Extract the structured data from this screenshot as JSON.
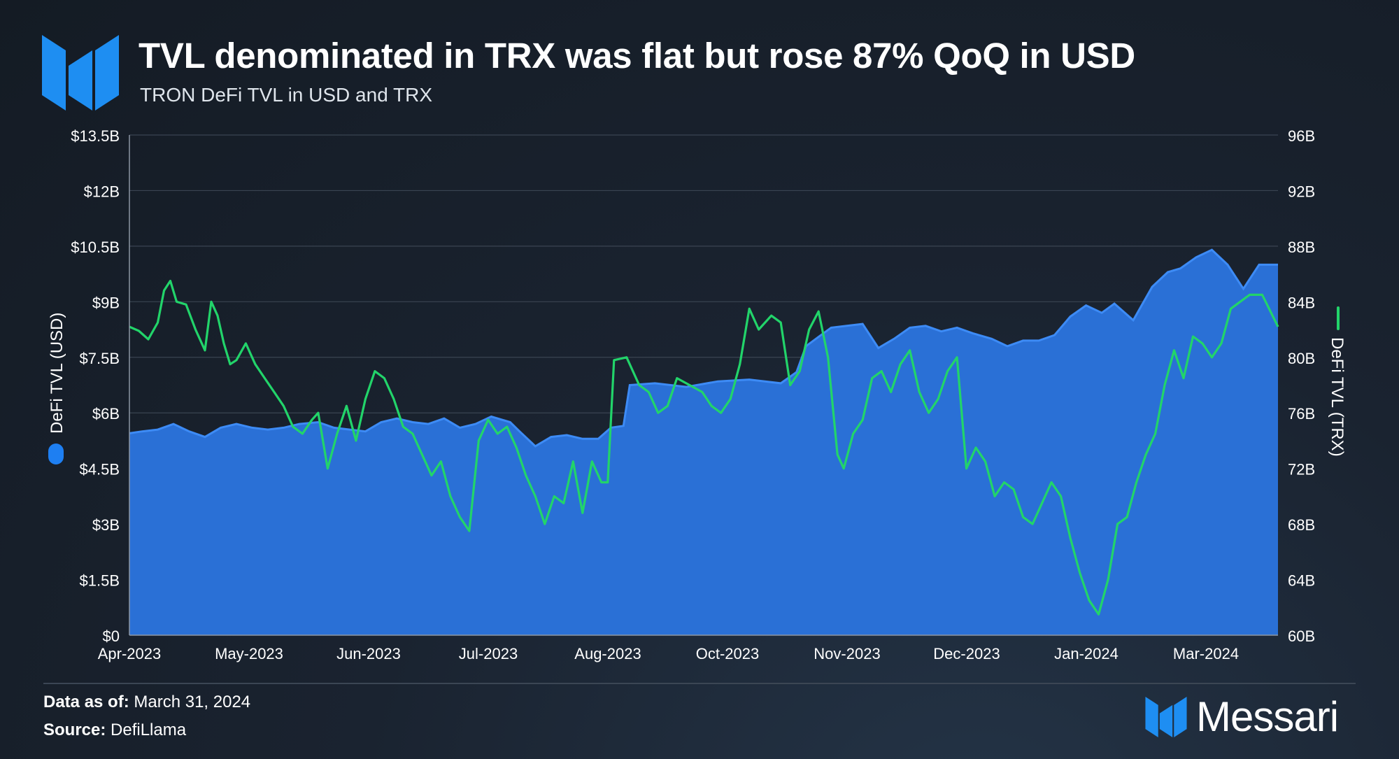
{
  "header": {
    "title": "TVL denominated in TRX was flat but rose 87% QoQ in USD",
    "subtitle": "TRON DeFi TVL in USD and TRX"
  },
  "footer": {
    "date_label": "Data as of:",
    "date_value": "March 31, 2024",
    "source_label": "Source:",
    "source_value": "DefiLlama"
  },
  "brand": {
    "name": "Messari",
    "logo_icon": "messari-logo-icon"
  },
  "colors": {
    "usd_area": "#2a70d6",
    "usd_line": "#3d8bf5",
    "trx_line": "#22d46a",
    "grid": "#3a4452",
    "text": "#ffffff"
  },
  "chart_data": {
    "type": "area+line",
    "title": "TVL denominated in TRX was flat but rose 87% QoQ in USD",
    "subtitle": "TRON DeFi TVL in USD and TRX",
    "x_tick_labels": [
      "Apr-2023",
      "May-2023",
      "Jun-2023",
      "Jul-2023",
      "Aug-2023",
      "Oct-2023",
      "Nov-2023",
      "Dec-2023",
      "Jan-2024",
      "Mar-2024"
    ],
    "x_range": [
      "2023-04-01",
      "2024-03-31"
    ],
    "y_left": {
      "label": "DeFi TVL (USD)",
      "min": 0,
      "max": 13.5,
      "unit": "B USD",
      "tick_labels": [
        "$0",
        "$1.5B",
        "$3B",
        "$4.5B",
        "$6B",
        "$7.5B",
        "$9B",
        "$10.5B",
        "$12B",
        "$13.5B"
      ]
    },
    "y_right": {
      "label": "DeFi TVL (TRX)",
      "min": 60,
      "max": 96,
      "unit": "B TRX",
      "tick_labels": [
        "60B",
        "64B",
        "68B",
        "72B",
        "76B",
        "80B",
        "84B",
        "88B",
        "92B",
        "96B"
      ]
    },
    "grid": "horizontal",
    "series": [
      {
        "name": "DeFi TVL (USD)",
        "axis": "left",
        "style": "area",
        "points": [
          [
            "2023-04-01",
            5.45
          ],
          [
            "2023-04-05",
            5.5
          ],
          [
            "2023-04-10",
            5.55
          ],
          [
            "2023-04-15",
            5.7
          ],
          [
            "2023-04-20",
            5.5
          ],
          [
            "2023-04-25",
            5.35
          ],
          [
            "2023-04-30",
            5.6
          ],
          [
            "2023-05-05",
            5.7
          ],
          [
            "2023-05-10",
            5.6
          ],
          [
            "2023-05-15",
            5.55
          ],
          [
            "2023-05-20",
            5.6
          ],
          [
            "2023-05-25",
            5.7
          ],
          [
            "2023-05-31",
            5.75
          ],
          [
            "2023-06-05",
            5.6
          ],
          [
            "2023-06-10",
            5.55
          ],
          [
            "2023-06-15",
            5.5
          ],
          [
            "2023-06-20",
            5.75
          ],
          [
            "2023-06-25",
            5.85
          ],
          [
            "2023-06-30",
            5.75
          ],
          [
            "2023-07-05",
            5.7
          ],
          [
            "2023-07-10",
            5.85
          ],
          [
            "2023-07-15",
            5.6
          ],
          [
            "2023-07-20",
            5.7
          ],
          [
            "2023-07-25",
            5.9
          ],
          [
            "2023-07-31",
            5.75
          ],
          [
            "2023-08-03",
            5.5
          ],
          [
            "2023-08-08",
            5.1
          ],
          [
            "2023-08-13",
            5.35
          ],
          [
            "2023-08-18",
            5.4
          ],
          [
            "2023-08-23",
            5.3
          ],
          [
            "2023-08-28",
            5.3
          ],
          [
            "2023-09-01",
            5.6
          ],
          [
            "2023-09-05",
            5.65
          ],
          [
            "2023-09-07",
            6.75
          ],
          [
            "2023-09-15",
            6.8
          ],
          [
            "2023-09-25",
            6.7
          ],
          [
            "2023-10-05",
            6.85
          ],
          [
            "2023-10-15",
            6.9
          ],
          [
            "2023-10-25",
            6.8
          ],
          [
            "2023-10-30",
            7.1
          ],
          [
            "2023-11-02",
            7.8
          ],
          [
            "2023-11-06",
            8.05
          ],
          [
            "2023-11-10",
            8.3
          ],
          [
            "2023-11-15",
            8.35
          ],
          [
            "2023-11-20",
            8.4
          ],
          [
            "2023-11-25",
            7.75
          ],
          [
            "2023-11-30",
            8.0
          ],
          [
            "2023-12-05",
            8.3
          ],
          [
            "2023-12-10",
            8.35
          ],
          [
            "2023-12-15",
            8.2
          ],
          [
            "2023-12-20",
            8.3
          ],
          [
            "2023-12-25",
            8.15
          ],
          [
            "2023-12-31",
            8.0
          ],
          [
            "2024-01-05",
            7.8
          ],
          [
            "2024-01-10",
            7.95
          ],
          [
            "2024-01-15",
            7.95
          ],
          [
            "2024-01-20",
            8.1
          ],
          [
            "2024-01-25",
            8.6
          ],
          [
            "2024-01-30",
            8.9
          ],
          [
            "2024-02-04",
            8.7
          ],
          [
            "2024-02-08",
            8.95
          ],
          [
            "2024-02-14",
            8.5
          ],
          [
            "2024-02-20",
            9.4
          ],
          [
            "2024-02-25",
            9.8
          ],
          [
            "2024-02-29",
            9.9
          ],
          [
            "2024-03-05",
            10.2
          ],
          [
            "2024-03-10",
            10.4
          ],
          [
            "2024-03-15",
            10.0
          ],
          [
            "2024-03-20",
            9.35
          ],
          [
            "2024-03-25",
            10.0
          ],
          [
            "2024-03-31",
            10.0
          ]
        ]
      },
      {
        "name": "DeFi TVL (TRX)",
        "axis": "right",
        "style": "line",
        "points": [
          [
            "2023-04-01",
            82.2
          ],
          [
            "2023-04-04",
            81.9
          ],
          [
            "2023-04-07",
            81.3
          ],
          [
            "2023-04-10",
            82.5
          ],
          [
            "2023-04-12",
            84.8
          ],
          [
            "2023-04-14",
            85.5
          ],
          [
            "2023-04-16",
            84.0
          ],
          [
            "2023-04-19",
            83.8
          ],
          [
            "2023-04-22",
            82.0
          ],
          [
            "2023-04-25",
            80.5
          ],
          [
            "2023-04-27",
            84.0
          ],
          [
            "2023-04-29",
            83.0
          ],
          [
            "2023-05-01",
            81.0
          ],
          [
            "2023-05-03",
            79.5
          ],
          [
            "2023-05-05",
            79.8
          ],
          [
            "2023-05-08",
            81.0
          ],
          [
            "2023-05-11",
            79.5
          ],
          [
            "2023-05-14",
            78.5
          ],
          [
            "2023-05-17",
            77.5
          ],
          [
            "2023-05-20",
            76.5
          ],
          [
            "2023-05-23",
            75.0
          ],
          [
            "2023-05-26",
            74.5
          ],
          [
            "2023-05-29",
            75.5
          ],
          [
            "2023-05-31",
            76.0
          ],
          [
            "2023-06-03",
            72.0
          ],
          [
            "2023-06-06",
            74.5
          ],
          [
            "2023-06-09",
            76.5
          ],
          [
            "2023-06-12",
            74.0
          ],
          [
            "2023-06-15",
            77.0
          ],
          [
            "2023-06-18",
            79.0
          ],
          [
            "2023-06-21",
            78.5
          ],
          [
            "2023-06-24",
            77.0
          ],
          [
            "2023-06-27",
            75.0
          ],
          [
            "2023-06-30",
            74.5
          ],
          [
            "2023-07-03",
            73.0
          ],
          [
            "2023-07-06",
            71.5
          ],
          [
            "2023-07-09",
            72.5
          ],
          [
            "2023-07-12",
            70.0
          ],
          [
            "2023-07-15",
            68.5
          ],
          [
            "2023-07-18",
            67.5
          ],
          [
            "2023-07-21",
            74.0
          ],
          [
            "2023-07-24",
            75.5
          ],
          [
            "2023-07-27",
            74.5
          ],
          [
            "2023-07-30",
            75.0
          ],
          [
            "2023-08-02",
            73.5
          ],
          [
            "2023-08-05",
            71.5
          ],
          [
            "2023-08-08",
            70.0
          ],
          [
            "2023-08-11",
            68.0
          ],
          [
            "2023-08-14",
            70.0
          ],
          [
            "2023-08-17",
            69.5
          ],
          [
            "2023-08-20",
            72.5
          ],
          [
            "2023-08-23",
            68.8
          ],
          [
            "2023-08-26",
            72.5
          ],
          [
            "2023-08-29",
            71.0
          ],
          [
            "2023-08-31",
            71.0
          ],
          [
            "2023-09-02",
            79.8
          ],
          [
            "2023-09-06",
            80.0
          ],
          [
            "2023-09-10",
            78.0
          ],
          [
            "2023-09-13",
            77.5
          ],
          [
            "2023-09-16",
            76.0
          ],
          [
            "2023-09-19",
            76.5
          ],
          [
            "2023-09-22",
            78.5
          ],
          [
            "2023-09-26",
            78.0
          ],
          [
            "2023-09-30",
            77.5
          ],
          [
            "2023-10-03",
            76.5
          ],
          [
            "2023-10-06",
            76.0
          ],
          [
            "2023-10-09",
            77.0
          ],
          [
            "2023-10-12",
            79.5
          ],
          [
            "2023-10-15",
            83.5
          ],
          [
            "2023-10-18",
            82.0
          ],
          [
            "2023-10-22",
            83.0
          ],
          [
            "2023-10-25",
            82.5
          ],
          [
            "2023-10-28",
            78.0
          ],
          [
            "2023-10-31",
            79.0
          ],
          [
            "2023-11-03",
            82.0
          ],
          [
            "2023-11-06",
            83.3
          ],
          [
            "2023-11-09",
            80.0
          ],
          [
            "2023-11-12",
            73.0
          ],
          [
            "2023-11-14",
            72.0
          ],
          [
            "2023-11-17",
            74.5
          ],
          [
            "2023-11-20",
            75.5
          ],
          [
            "2023-11-23",
            78.5
          ],
          [
            "2023-11-26",
            79.0
          ],
          [
            "2023-11-29",
            77.5
          ],
          [
            "2023-12-02",
            79.5
          ],
          [
            "2023-12-05",
            80.5
          ],
          [
            "2023-12-08",
            77.5
          ],
          [
            "2023-12-11",
            76.0
          ],
          [
            "2023-12-14",
            77.0
          ],
          [
            "2023-12-17",
            79.0
          ],
          [
            "2023-12-20",
            80.0
          ],
          [
            "2023-12-23",
            72.0
          ],
          [
            "2023-12-26",
            73.5
          ],
          [
            "2023-12-29",
            72.5
          ],
          [
            "2024-01-01",
            70.0
          ],
          [
            "2024-01-04",
            71.0
          ],
          [
            "2024-01-07",
            70.5
          ],
          [
            "2024-01-10",
            68.5
          ],
          [
            "2024-01-13",
            68.0
          ],
          [
            "2024-01-16",
            69.5
          ],
          [
            "2024-01-19",
            71.0
          ],
          [
            "2024-01-22",
            70.0
          ],
          [
            "2024-01-25",
            67.0
          ],
          [
            "2024-01-28",
            64.5
          ],
          [
            "2024-01-31",
            62.5
          ],
          [
            "2024-02-03",
            61.5
          ],
          [
            "2024-02-06",
            64.0
          ],
          [
            "2024-02-09",
            68.0
          ],
          [
            "2024-02-12",
            68.5
          ],
          [
            "2024-02-15",
            71.0
          ],
          [
            "2024-02-18",
            73.0
          ],
          [
            "2024-02-21",
            74.5
          ],
          [
            "2024-02-24",
            78.0
          ],
          [
            "2024-02-27",
            80.5
          ],
          [
            "2024-03-01",
            78.5
          ],
          [
            "2024-03-04",
            81.5
          ],
          [
            "2024-03-07",
            81.0
          ],
          [
            "2024-03-10",
            80.0
          ],
          [
            "2024-03-13",
            81.0
          ],
          [
            "2024-03-16",
            83.5
          ],
          [
            "2024-03-19",
            84.0
          ],
          [
            "2024-03-22",
            84.5
          ],
          [
            "2024-03-26",
            84.5
          ],
          [
            "2024-03-31",
            82.2
          ]
        ]
      }
    ]
  }
}
